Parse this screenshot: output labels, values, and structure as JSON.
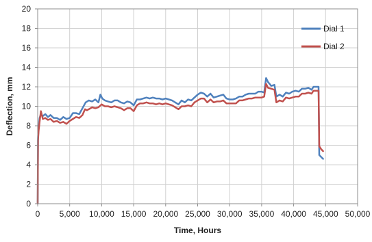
{
  "chart_data": {
    "type": "line",
    "title": "",
    "xlabel": "Time, Hours",
    "ylabel": "Deflection, mm",
    "xlim": [
      0,
      50000
    ],
    "ylim": [
      0,
      20
    ],
    "x_ticks": [
      0,
      5000,
      10000,
      15000,
      20000,
      25000,
      30000,
      35000,
      40000,
      45000,
      50000
    ],
    "x_tick_labels": [
      "0",
      "5,000",
      "10,000",
      "15,000",
      "20,000",
      "25,000",
      "30,000",
      "35,000",
      "40,000",
      "45,000",
      "50,000"
    ],
    "y_ticks": [
      0,
      2,
      4,
      6,
      8,
      10,
      12,
      14,
      16,
      18,
      20
    ],
    "y_tick_labels": [
      "0",
      "2",
      "4",
      "6",
      "8",
      "10",
      "12",
      "14",
      "16",
      "18",
      "20"
    ],
    "grid": true,
    "legend_position": "top-right",
    "series": [
      {
        "name": "Dial 1",
        "color": "#4F81BD",
        "points": [
          [
            0,
            0
          ],
          [
            50,
            6.8
          ],
          [
            150,
            7.8
          ],
          [
            300,
            8.8
          ],
          [
            500,
            9.2
          ],
          [
            800,
            9.0
          ],
          [
            1200,
            9.2
          ],
          [
            1600,
            8.9
          ],
          [
            2000,
            9.1
          ],
          [
            2500,
            8.8
          ],
          [
            3000,
            8.8
          ],
          [
            3500,
            8.6
          ],
          [
            4000,
            8.9
          ],
          [
            4500,
            8.7
          ],
          [
            5000,
            8.8
          ],
          [
            5500,
            9.3
          ],
          [
            6000,
            9.3
          ],
          [
            6500,
            9.2
          ],
          [
            7000,
            9.8
          ],
          [
            7500,
            10.4
          ],
          [
            8000,
            10.6
          ],
          [
            8500,
            10.5
          ],
          [
            9000,
            10.7
          ],
          [
            9500,
            10.4
          ],
          [
            9800,
            11.2
          ],
          [
            10100,
            10.8
          ],
          [
            10500,
            10.6
          ],
          [
            11000,
            10.5
          ],
          [
            11500,
            10.4
          ],
          [
            12000,
            10.6
          ],
          [
            12500,
            10.6
          ],
          [
            13000,
            10.4
          ],
          [
            13500,
            10.3
          ],
          [
            14000,
            10.5
          ],
          [
            14500,
            10.4
          ],
          [
            15000,
            10.1
          ],
          [
            15500,
            10.7
          ],
          [
            16000,
            10.7
          ],
          [
            16500,
            10.8
          ],
          [
            17000,
            10.9
          ],
          [
            17500,
            10.8
          ],
          [
            18000,
            10.9
          ],
          [
            18500,
            10.8
          ],
          [
            19000,
            10.8
          ],
          [
            19500,
            10.7
          ],
          [
            20000,
            10.8
          ],
          [
            20500,
            10.7
          ],
          [
            21000,
            10.6
          ],
          [
            21500,
            10.4
          ],
          [
            22000,
            10.2
          ],
          [
            22500,
            10.6
          ],
          [
            23000,
            10.4
          ],
          [
            23500,
            10.7
          ],
          [
            24000,
            10.6
          ],
          [
            24500,
            10.9
          ],
          [
            25000,
            11.2
          ],
          [
            25500,
            11.4
          ],
          [
            26000,
            11.3
          ],
          [
            26500,
            11.0
          ],
          [
            27000,
            11.3
          ],
          [
            27500,
            10.9
          ],
          [
            28000,
            11.0
          ],
          [
            28500,
            11.1
          ],
          [
            29000,
            11.2
          ],
          [
            29500,
            10.8
          ],
          [
            30000,
            10.7
          ],
          [
            30500,
            10.7
          ],
          [
            31000,
            10.8
          ],
          [
            31500,
            11.0
          ],
          [
            32000,
            11.0
          ],
          [
            32500,
            11.2
          ],
          [
            33000,
            11.3
          ],
          [
            33500,
            11.3
          ],
          [
            34000,
            11.3
          ],
          [
            34500,
            11.5
          ],
          [
            35000,
            11.5
          ],
          [
            35400,
            11.4
          ],
          [
            35700,
            12.9
          ],
          [
            36000,
            12.5
          ],
          [
            36500,
            12.1
          ],
          [
            37000,
            12.2
          ],
          [
            37300,
            11.0
          ],
          [
            37800,
            11.2
          ],
          [
            38300,
            11.0
          ],
          [
            38800,
            11.4
          ],
          [
            39300,
            11.3
          ],
          [
            39800,
            11.5
          ],
          [
            40300,
            11.6
          ],
          [
            40800,
            11.5
          ],
          [
            41300,
            11.8
          ],
          [
            41800,
            11.8
          ],
          [
            42300,
            11.9
          ],
          [
            42800,
            11.7
          ],
          [
            43100,
            12.0
          ],
          [
            43600,
            12.0
          ],
          [
            43900,
            12.0
          ],
          [
            44000,
            5.0
          ],
          [
            44300,
            4.8
          ],
          [
            44600,
            4.6
          ]
        ]
      },
      {
        "name": "Dial 2",
        "color": "#C0504D",
        "points": [
          [
            0,
            0
          ],
          [
            50,
            6.5
          ],
          [
            150,
            7.5
          ],
          [
            300,
            8.4
          ],
          [
            500,
            9.5
          ],
          [
            800,
            8.7
          ],
          [
            1200,
            8.8
          ],
          [
            1600,
            8.6
          ],
          [
            2000,
            8.7
          ],
          [
            2500,
            8.4
          ],
          [
            3000,
            8.5
          ],
          [
            3500,
            8.3
          ],
          [
            4000,
            8.4
          ],
          [
            4500,
            8.2
          ],
          [
            5000,
            8.5
          ],
          [
            5500,
            8.7
          ],
          [
            6000,
            8.9
          ],
          [
            6500,
            8.8
          ],
          [
            7000,
            9.1
          ],
          [
            7400,
            9.7
          ],
          [
            7700,
            9.6
          ],
          [
            8000,
            9.7
          ],
          [
            8500,
            9.9
          ],
          [
            9000,
            9.8
          ],
          [
            9500,
            9.9
          ],
          [
            10000,
            10.2
          ],
          [
            10500,
            10.0
          ],
          [
            11000,
            10.0
          ],
          [
            11500,
            9.9
          ],
          [
            12000,
            10.0
          ],
          [
            12500,
            9.9
          ],
          [
            13000,
            9.8
          ],
          [
            13500,
            9.6
          ],
          [
            14000,
            9.8
          ],
          [
            14500,
            9.8
          ],
          [
            15000,
            9.5
          ],
          [
            15500,
            10.1
          ],
          [
            16000,
            10.3
          ],
          [
            16500,
            10.3
          ],
          [
            17000,
            10.4
          ],
          [
            17500,
            10.3
          ],
          [
            18000,
            10.3
          ],
          [
            18500,
            10.2
          ],
          [
            19000,
            10.3
          ],
          [
            19500,
            10.2
          ],
          [
            20000,
            10.3
          ],
          [
            20500,
            10.2
          ],
          [
            21000,
            10.1
          ],
          [
            21500,
            9.9
          ],
          [
            22000,
            9.7
          ],
          [
            22500,
            10.0
          ],
          [
            23000,
            10.0
          ],
          [
            23500,
            10.1
          ],
          [
            24000,
            10.0
          ],
          [
            24500,
            10.4
          ],
          [
            25000,
            10.6
          ],
          [
            25500,
            10.8
          ],
          [
            26000,
            10.8
          ],
          [
            26500,
            10.4
          ],
          [
            27000,
            10.7
          ],
          [
            27500,
            10.4
          ],
          [
            28000,
            10.5
          ],
          [
            28500,
            10.5
          ],
          [
            29000,
            10.6
          ],
          [
            29500,
            10.3
          ],
          [
            30000,
            10.3
          ],
          [
            30500,
            10.3
          ],
          [
            31000,
            10.3
          ],
          [
            31500,
            10.6
          ],
          [
            32000,
            10.6
          ],
          [
            32500,
            10.7
          ],
          [
            33000,
            10.8
          ],
          [
            33500,
            10.8
          ],
          [
            34000,
            10.9
          ],
          [
            34500,
            10.9
          ],
          [
            35000,
            10.9
          ],
          [
            35400,
            11.0
          ],
          [
            35700,
            12.3
          ],
          [
            36000,
            11.9
          ],
          [
            36500,
            11.8
          ],
          [
            37000,
            11.7
          ],
          [
            37300,
            10.4
          ],
          [
            37800,
            10.6
          ],
          [
            38300,
            10.5
          ],
          [
            38800,
            10.9
          ],
          [
            39300,
            10.8
          ],
          [
            39800,
            10.9
          ],
          [
            40300,
            11.0
          ],
          [
            40800,
            11.0
          ],
          [
            41300,
            11.3
          ],
          [
            41800,
            11.3
          ],
          [
            42300,
            11.4
          ],
          [
            42800,
            11.3
          ],
          [
            43100,
            11.6
          ],
          [
            43600,
            11.6
          ],
          [
            43900,
            11.6
          ],
          [
            44000,
            5.9
          ],
          [
            44300,
            5.6
          ],
          [
            44600,
            5.4
          ]
        ]
      }
    ]
  }
}
